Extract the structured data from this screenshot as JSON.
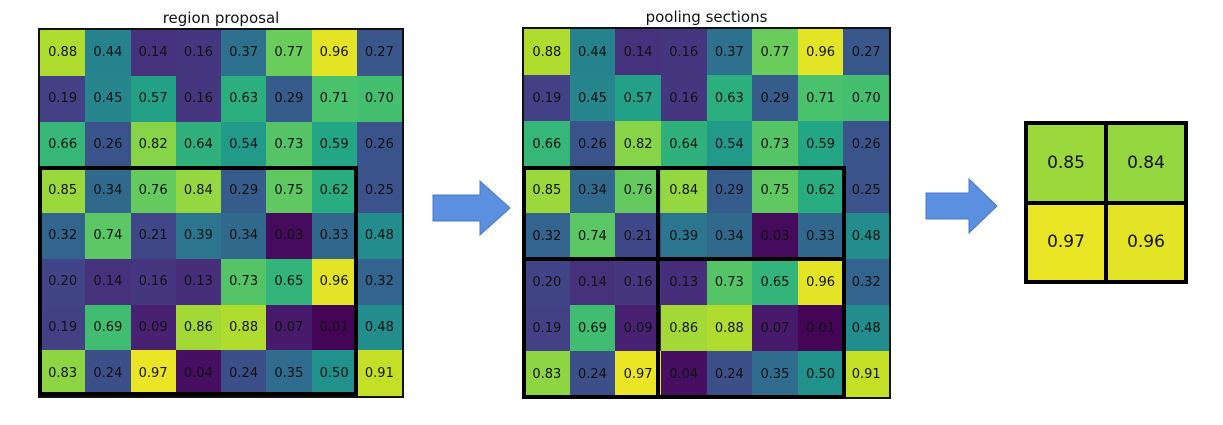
{
  "titles": {
    "region": "region proposal",
    "pooling": "pooling sections"
  },
  "matrix": [
    [
      "0.88",
      "0.44",
      "0.14",
      "0.16",
      "0.37",
      "0.77",
      "0.96",
      "0.27"
    ],
    [
      "0.19",
      "0.45",
      "0.57",
      "0.16",
      "0.63",
      "0.29",
      "0.71",
      "0.70"
    ],
    [
      "0.66",
      "0.26",
      "0.82",
      "0.64",
      "0.54",
      "0.73",
      "0.59",
      "0.26"
    ],
    [
      "0.85",
      "0.34",
      "0.76",
      "0.84",
      "0.29",
      "0.75",
      "0.62",
      "0.25"
    ],
    [
      "0.32",
      "0.74",
      "0.21",
      "0.39",
      "0.34",
      "0.03",
      "0.33",
      "0.48"
    ],
    [
      "0.20",
      "0.14",
      "0.16",
      "0.13",
      "0.73",
      "0.65",
      "0.96",
      "0.32"
    ],
    [
      "0.19",
      "0.69",
      "0.09",
      "0.86",
      "0.88",
      "0.07",
      "0.01",
      "0.48"
    ],
    [
      "0.83",
      "0.24",
      "0.97",
      "0.04",
      "0.24",
      "0.35",
      "0.50",
      "0.91"
    ]
  ],
  "output": [
    [
      "0.85",
      "0.84"
    ],
    [
      "0.97",
      "0.96"
    ]
  ],
  "colors": {
    "arrow": "#5b8fe0",
    "box": "#000000"
  }
}
